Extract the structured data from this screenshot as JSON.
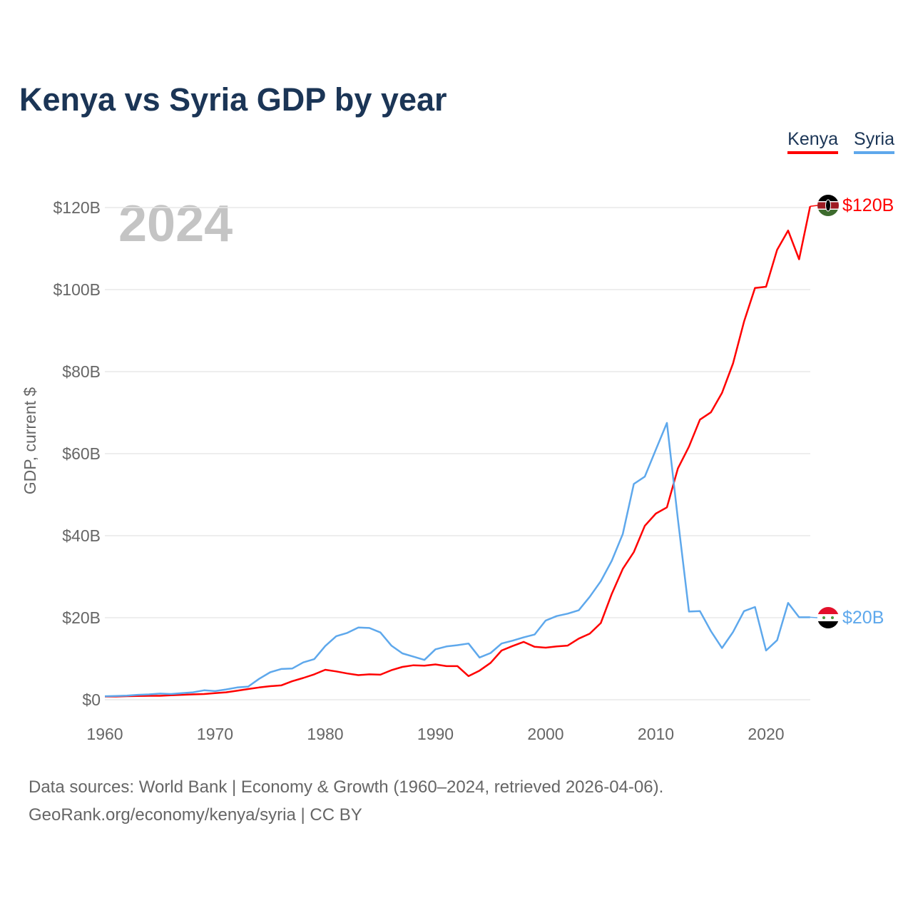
{
  "title": "Kenya vs Syria GDP by year",
  "legend": [
    {
      "label": "Kenya",
      "color": "#ff0000"
    },
    {
      "label": "Syria",
      "color": "#5ea8ec"
    }
  ],
  "year_watermark": "2024",
  "end_labels": {
    "kenya": "$120B",
    "syria": "$20B"
  },
  "source_line1": "Data sources: World Bank | Economy & Growth (1960–2024, retrieved 2026-04-06).",
  "source_line2": "GeoRank.org/economy/kenya/syria | CC BY",
  "chart_data": {
    "type": "line",
    "title": "Kenya vs Syria GDP by year",
    "xlabel": "",
    "ylabel": "GDP, current $",
    "xlim": [
      1960,
      2024
    ],
    "ylim": [
      0,
      120
    ],
    "y_unit": "billion USD",
    "x_ticks": [
      1960,
      1970,
      1980,
      1990,
      2000,
      2010,
      2020
    ],
    "y_ticks": [
      0,
      20,
      40,
      60,
      80,
      100,
      120
    ],
    "y_tick_labels": [
      "$0",
      "$20B",
      "$40B",
      "$60B",
      "$80B",
      "$100B",
      "$120B"
    ],
    "grid": true,
    "legend_position": "top-right",
    "x": [
      1960,
      1961,
      1962,
      1963,
      1964,
      1965,
      1966,
      1967,
      1968,
      1969,
      1970,
      1971,
      1972,
      1973,
      1974,
      1975,
      1976,
      1977,
      1978,
      1979,
      1980,
      1981,
      1982,
      1983,
      1984,
      1985,
      1986,
      1987,
      1988,
      1989,
      1990,
      1991,
      1992,
      1993,
      1994,
      1995,
      1996,
      1997,
      1998,
      1999,
      2000,
      2001,
      2002,
      2003,
      2004,
      2005,
      2006,
      2007,
      2008,
      2009,
      2010,
      2011,
      2012,
      2013,
      2014,
      2015,
      2016,
      2017,
      2018,
      2019,
      2020,
      2021,
      2022,
      2023,
      2024
    ],
    "series": [
      {
        "name": "Kenya",
        "color": "#ff0000",
        "values": [
          0.79,
          0.79,
          0.87,
          0.93,
          0.95,
          0.96,
          1.1,
          1.2,
          1.3,
          1.4,
          1.6,
          1.8,
          2.2,
          2.6,
          3.0,
          3.3,
          3.5,
          4.5,
          5.3,
          6.2,
          7.3,
          6.9,
          6.4,
          6.0,
          6.2,
          6.1,
          7.2,
          8.0,
          8.4,
          8.3,
          8.6,
          8.2,
          8.2,
          5.75,
          7.1,
          9.0,
          12.0,
          13.1,
          14.1,
          12.9,
          12.7,
          13.0,
          13.2,
          14.9,
          16.1,
          18.7,
          25.8,
          31.9,
          36.0,
          42.4,
          45.4,
          46.9,
          56.4,
          61.7,
          68.3,
          70.1,
          74.8,
          82.0,
          92.2,
          100.4,
          100.7,
          109.7,
          114.4,
          107.4,
          120.3
        ]
      },
      {
        "name": "Syria",
        "color": "#5ea8ec",
        "values": [
          0.86,
          0.9,
          1.0,
          1.2,
          1.3,
          1.5,
          1.4,
          1.6,
          1.8,
          2.3,
          2.1,
          2.5,
          3.0,
          3.2,
          5.1,
          6.7,
          7.5,
          7.6,
          9.1,
          9.9,
          13.1,
          15.5,
          16.3,
          17.6,
          17.5,
          16.4,
          13.2,
          11.3,
          10.5,
          9.7,
          12.3,
          13.0,
          13.3,
          13.7,
          10.3,
          11.4,
          13.7,
          14.4,
          15.2,
          15.9,
          19.3,
          20.4,
          21.0,
          21.8,
          25.1,
          28.9,
          33.9,
          40.4,
          52.6,
          54.4,
          61.0,
          67.5,
          44.0,
          21.5,
          21.6,
          16.7,
          12.6,
          16.5,
          21.6,
          22.6,
          12.0,
          14.5,
          23.6,
          20.1,
          20.1
        ]
      }
    ]
  }
}
